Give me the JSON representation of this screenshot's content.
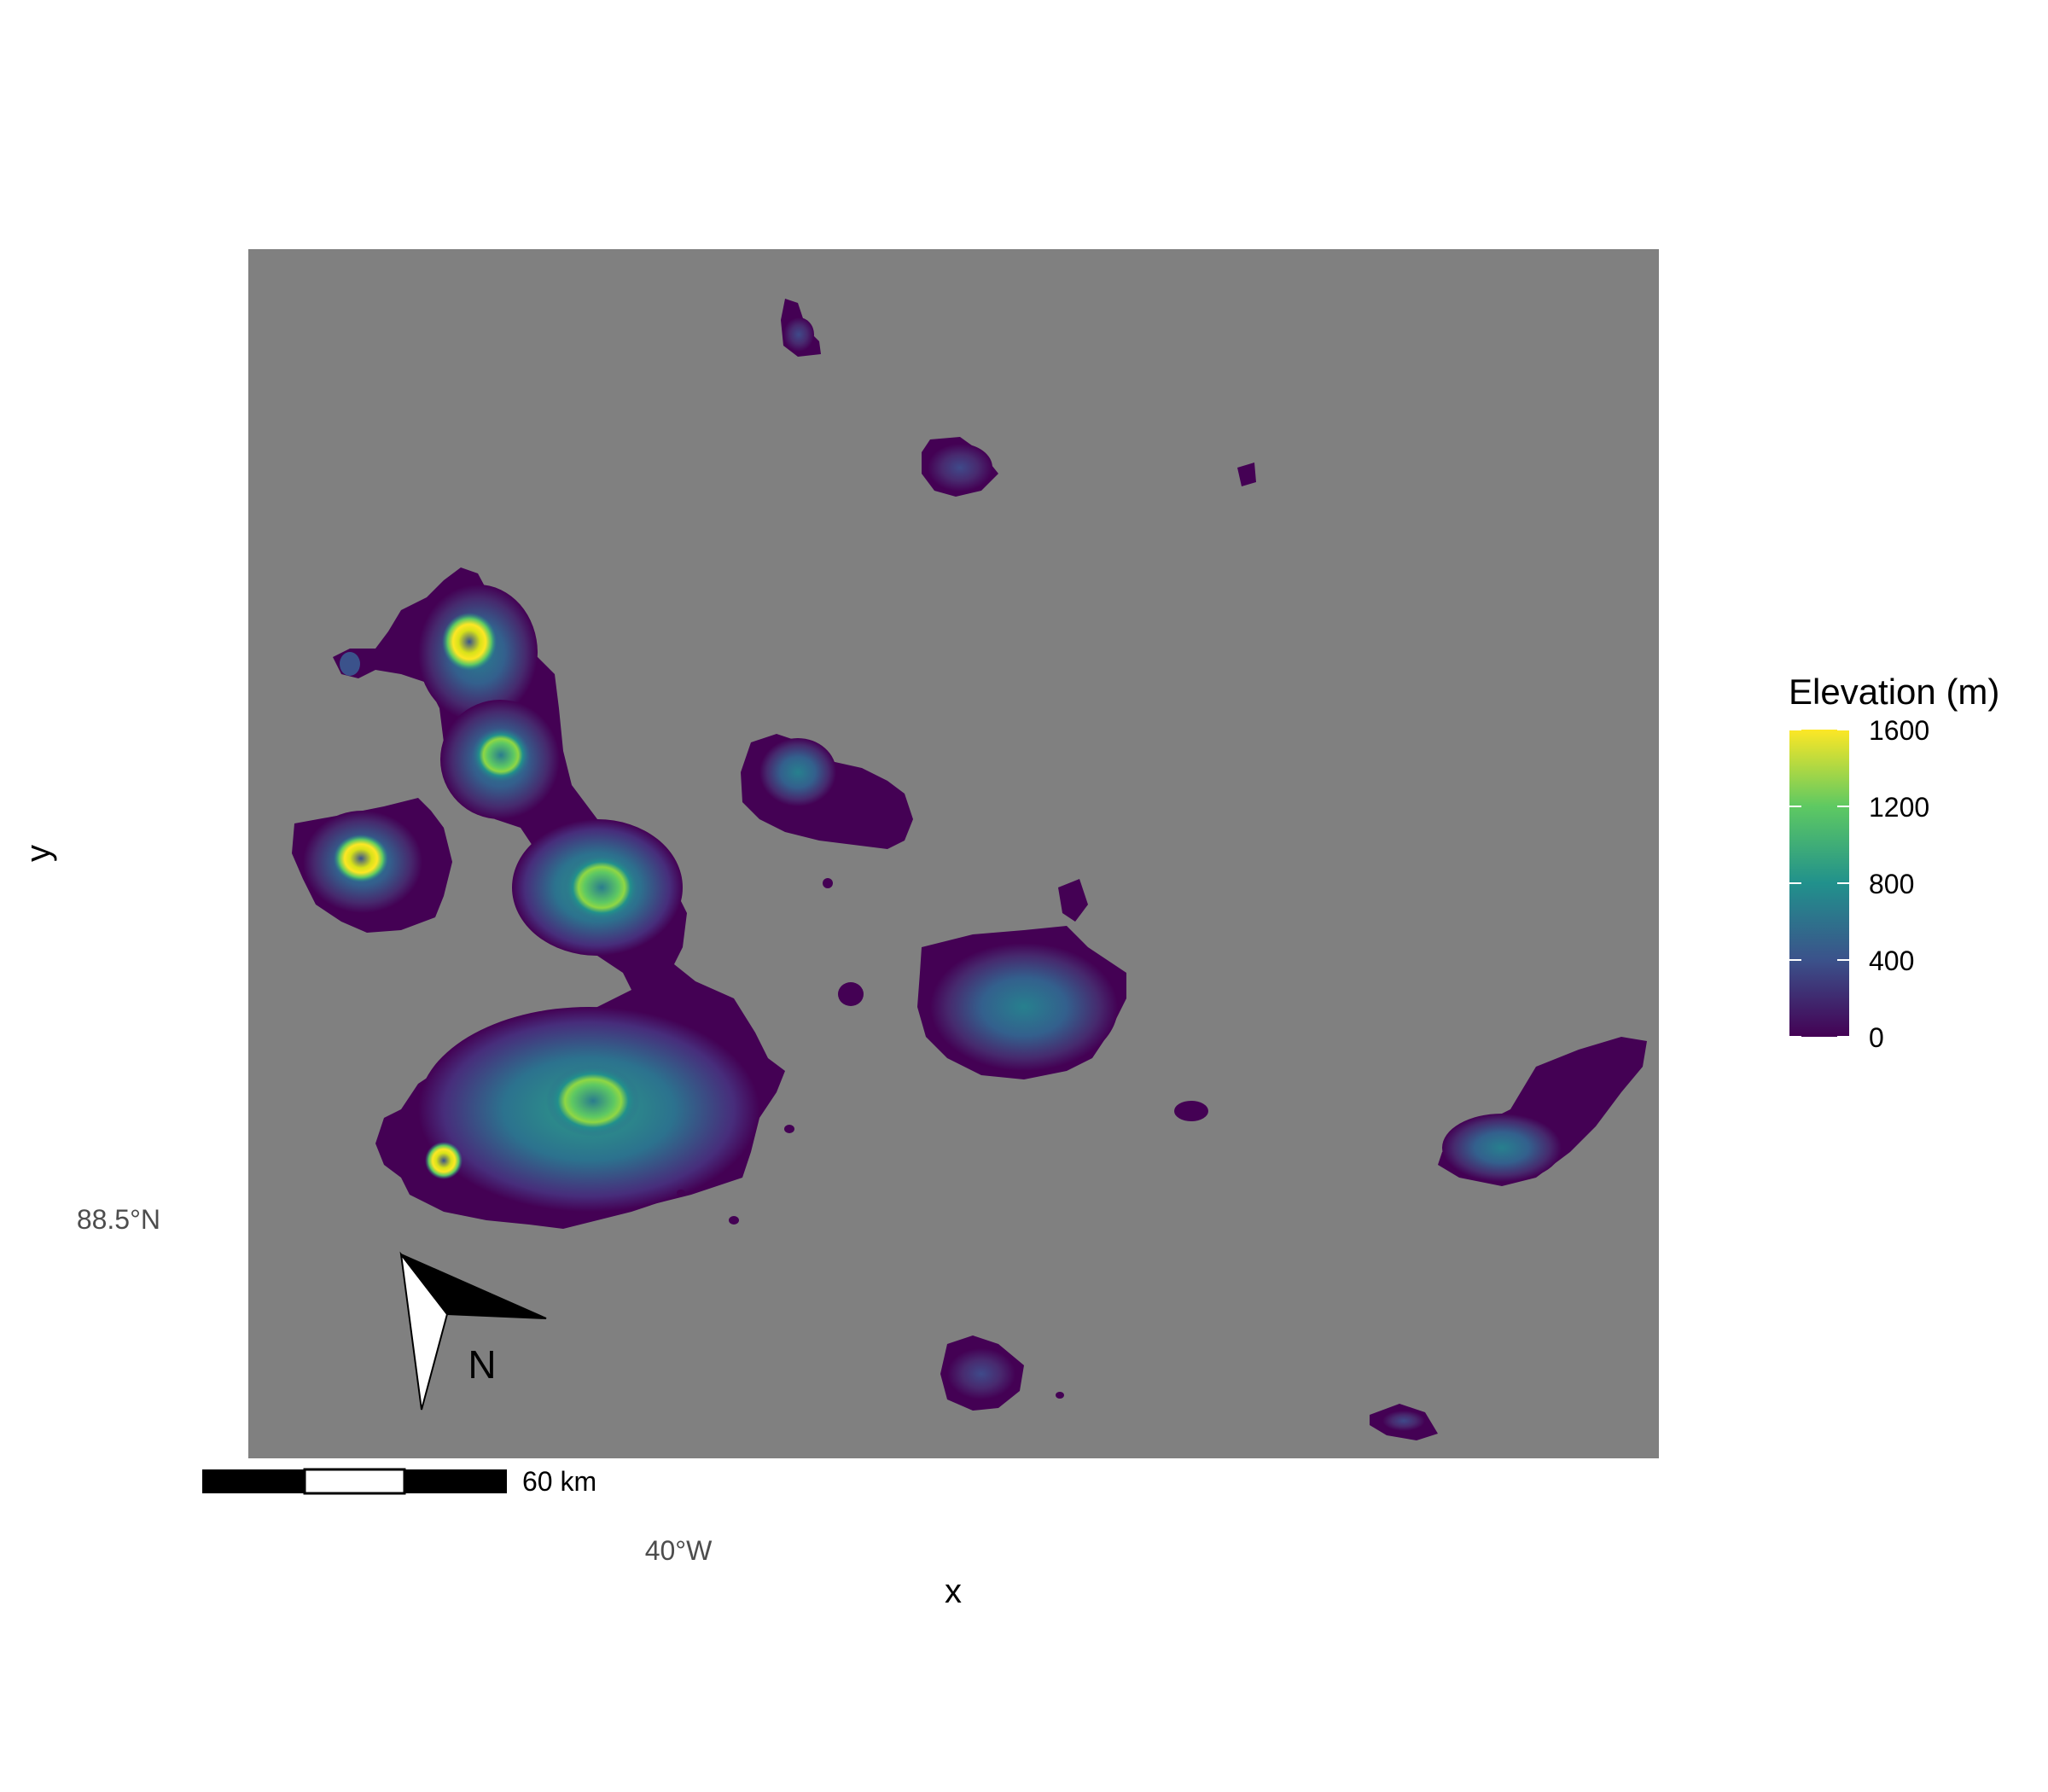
{
  "axes": {
    "x_title": "x",
    "y_title": "y",
    "x_tick": "40°W",
    "y_tick": "88.5°N"
  },
  "legend": {
    "title": "Elevation (m)",
    "ticks": [
      "1600",
      "1200",
      "800",
      "400",
      "0"
    ],
    "range": [
      0,
      1600
    ],
    "palette": [
      "#440154",
      "#3b528b",
      "#21918c",
      "#5ec962",
      "#fde725"
    ]
  },
  "north_arrow": {
    "label": "N"
  },
  "scale_bar": {
    "label": "60 km"
  },
  "colors": {
    "panel": "#808080",
    "background": "#ffffff"
  },
  "chart_data": {
    "type": "heatmap",
    "title": "",
    "xlabel": "x",
    "ylabel": "y",
    "x_ticks": [
      "40°W"
    ],
    "y_ticks": [
      "88.5°N"
    ],
    "value_name": "Elevation (m)",
    "value_range": [
      0,
      1600
    ],
    "grid": false,
    "legend_position": "right"
  }
}
